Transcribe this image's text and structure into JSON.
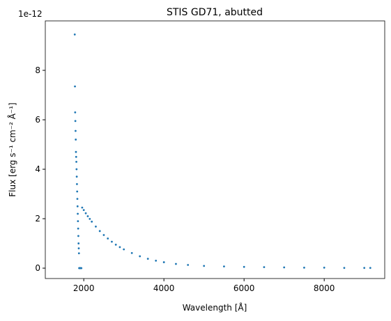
{
  "chart_data": {
    "type": "scatter",
    "title": "STIS GD71, abutted",
    "x_label": "Wavelength [Å]",
    "y_label": "Flux [erg s⁻¹ cm⁻² Å⁻¹]",
    "y_offset": "1e-12",
    "color": "#1f77b4",
    "x": [
      1775,
      1780,
      1785,
      1790,
      1795,
      1800,
      1805,
      1810,
      1815,
      1820,
      1825,
      1830,
      1835,
      1840,
      1845,
      1850,
      1855,
      1860,
      1865,
      1870,
      1875,
      1880,
      1885,
      1900,
      1920,
      1940,
      1960,
      2000,
      2050,
      2100,
      2150,
      2200,
      2300,
      2400,
      2500,
      2600,
      2700,
      2800,
      2900,
      3000,
      3200,
      3400,
      3600,
      3800,
      4000,
      4300,
      4600,
      5000,
      5500,
      6000,
      6500,
      7000,
      7500,
      8000,
      8500,
      9000,
      9150
    ],
    "values": [
      9.45,
      7.35,
      6.3,
      5.95,
      5.55,
      5.2,
      4.7,
      4.5,
      4.3,
      4.0,
      3.7,
      3.4,
      3.1,
      2.8,
      2.5,
      2.2,
      1.9,
      1.6,
      1.3,
      1.0,
      0.8,
      0.6,
      0,
      0,
      0,
      0,
      2.45,
      2.35,
      2.22,
      2.1,
      1.99,
      1.88,
      1.68,
      1.5,
      1.34,
      1.2,
      1.07,
      0.95,
      0.85,
      0.76,
      0.61,
      0.48,
      0.38,
      0.3,
      0.24,
      0.17,
      0.13,
      0.09,
      0.07,
      0.05,
      0.04,
      0.03,
      0.02,
      0.02,
      0.01,
      0.01,
      0.01
    ],
    "xlim": [
      1040,
      9510
    ],
    "ylim": [
      -0.42,
      10.0
    ],
    "xticks": [
      2000,
      4000,
      6000,
      8000
    ],
    "yticks": [
      0,
      2,
      4,
      6,
      8
    ]
  }
}
